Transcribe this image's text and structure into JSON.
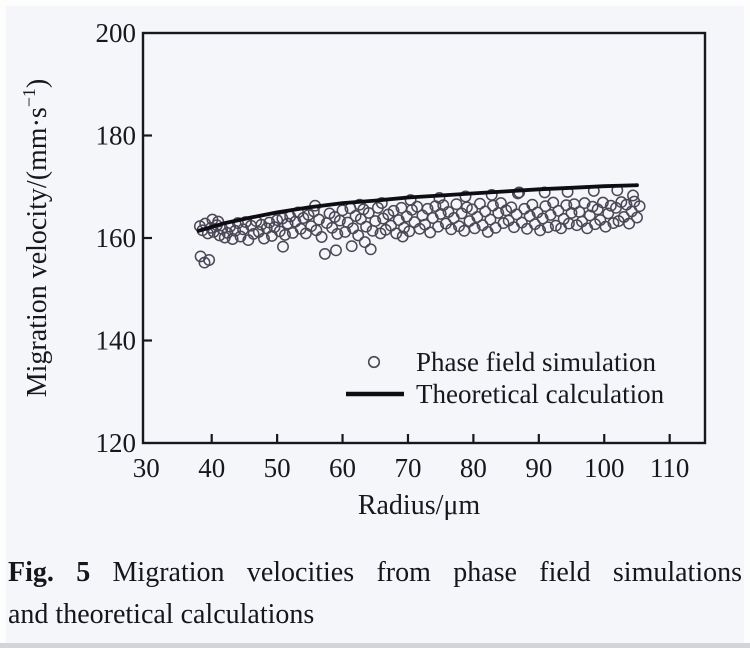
{
  "caption": {
    "prefix": "Fig. 5",
    "line1_rest": "Migration velocities from phase field simulations",
    "line2": "and theoretical calculations"
  },
  "colors": {
    "ink": "#17171f",
    "scatter_stroke": "#4b4756",
    "line_stroke": "#0d0d13",
    "background": "#f5f6f9",
    "frame": "#fdfdfe",
    "bottom_strip": "#d2d4d7"
  },
  "chart_data": {
    "type": "scatter",
    "title": "",
    "xlabel": "Radius/μm",
    "ylabel": "Migration velocity/(mm·s⁻¹)",
    "ylabel_parts": {
      "pre": "Migration velocity/(mm·s",
      "sup": "−1",
      "post": ")"
    },
    "xlim": [
      29.5,
      115.4
    ],
    "ylim": [
      120,
      200
    ],
    "x_ticks": [
      30,
      40,
      50,
      60,
      70,
      80,
      90,
      100,
      110
    ],
    "y_ticks": [
      120,
      140,
      160,
      180,
      200
    ],
    "grid": false,
    "legend_pos": "inside-bottom-center",
    "legend": [
      {
        "label": "Phase field simulation",
        "marker": "circle"
      },
      {
        "label": "Theoretical calculation",
        "marker": "line"
      }
    ],
    "series": [
      {
        "name": "Phase field simulation",
        "type": "scatter",
        "points": [
          [
            38.2,
            162.3
          ],
          [
            38.6,
            161.5
          ],
          [
            39.0,
            162.8
          ],
          [
            39.4,
            160.9
          ],
          [
            39.9,
            162.0
          ],
          [
            40.1,
            163.6
          ],
          [
            40.3,
            161.2
          ],
          [
            40.8,
            162.5
          ],
          [
            41.0,
            163.2
          ],
          [
            41.2,
            160.5
          ],
          [
            41.6,
            161.8
          ],
          [
            42.0,
            160.1
          ],
          [
            38.3,
            156.4
          ],
          [
            38.9,
            155.2
          ],
          [
            39.6,
            155.7
          ],
          [
            42.4,
            161.0
          ],
          [
            42.8,
            162.2
          ],
          [
            43.2,
            159.8
          ],
          [
            43.6,
            161.4
          ],
          [
            44.0,
            162.9
          ],
          [
            44.4,
            160.3
          ],
          [
            44.8,
            161.7
          ],
          [
            45.2,
            163.1
          ],
          [
            45.6,
            159.6
          ],
          [
            46.0,
            162.4
          ],
          [
            46.4,
            160.8
          ],
          [
            46.8,
            163.3
          ],
          [
            47.2,
            161.2
          ],
          [
            47.6,
            162.6
          ],
          [
            48.0,
            159.9
          ],
          [
            48.4,
            161.9
          ],
          [
            48.8,
            163.0
          ],
          [
            49.2,
            160.4
          ],
          [
            49.6,
            162.1
          ],
          [
            50.0,
            163.5
          ],
          [
            50.9,
            158.3
          ],
          [
            50.4,
            161.3
          ],
          [
            50.8,
            163.8
          ],
          [
            51.2,
            160.6
          ],
          [
            51.6,
            162.8
          ],
          [
            52.0,
            164.2
          ],
          [
            52.4,
            161.0
          ],
          [
            52.8,
            163.2
          ],
          [
            53.2,
            165.0
          ],
          [
            53.6,
            161.8
          ],
          [
            54.0,
            163.9
          ],
          [
            54.4,
            160.9
          ],
          [
            54.8,
            164.5
          ],
          [
            55.2,
            162.3
          ],
          [
            55.6,
            165.2
          ],
          [
            55.8,
            166.3
          ],
          [
            56.0,
            161.5
          ],
          [
            56.4,
            163.6
          ],
          [
            56.8,
            160.2
          ],
          [
            57.3,
            156.9
          ],
          [
            57.6,
            162.9
          ],
          [
            58.0,
            164.8
          ],
          [
            58.4,
            162.0
          ],
          [
            58.8,
            164.1
          ],
          [
            59.0,
            157.6
          ],
          [
            59.2,
            160.8
          ],
          [
            59.6,
            163.4
          ],
          [
            60.0,
            165.4
          ],
          [
            60.4,
            161.2
          ],
          [
            60.8,
            163.0
          ],
          [
            61.2,
            165.8
          ],
          [
            61.4,
            158.4
          ],
          [
            61.6,
            161.9
          ],
          [
            62.0,
            164.3
          ],
          [
            62.4,
            160.5
          ],
          [
            62.6,
            166.5
          ],
          [
            62.8,
            163.7
          ],
          [
            63.2,
            165.6
          ],
          [
            63.4,
            159.2
          ],
          [
            63.6,
            162.2
          ],
          [
            64.0,
            164.9
          ],
          [
            64.3,
            157.8
          ],
          [
            64.6,
            161.4
          ],
          [
            65.0,
            163.3
          ],
          [
            65.4,
            165.9
          ],
          [
            65.8,
            160.9
          ],
          [
            66.0,
            166.8
          ],
          [
            66.2,
            163.8
          ],
          [
            66.6,
            161.6
          ],
          [
            67.0,
            164.6
          ],
          [
            67.4,
            162.4
          ],
          [
            67.8,
            165.3
          ],
          [
            68.2,
            160.9
          ],
          [
            68.6,
            163.5
          ],
          [
            69.0,
            165.9
          ],
          [
            69.2,
            160.3
          ],
          [
            69.4,
            162.0
          ],
          [
            69.8,
            164.2
          ],
          [
            70.2,
            161.3
          ],
          [
            70.4,
            167.4
          ],
          [
            70.6,
            165.5
          ],
          [
            71.0,
            163.1
          ],
          [
            71.4,
            166.1
          ],
          [
            71.8,
            161.8
          ],
          [
            72.2,
            164.4
          ],
          [
            72.6,
            162.6
          ],
          [
            73.0,
            165.7
          ],
          [
            73.4,
            161.1
          ],
          [
            73.8,
            163.9
          ],
          [
            74.2,
            166.2
          ],
          [
            74.6,
            162.2
          ],
          [
            74.8,
            167.8
          ],
          [
            75.0,
            164.7
          ],
          [
            75.4,
            166.4
          ],
          [
            75.8,
            162.8
          ],
          [
            76.2,
            165.1
          ],
          [
            76.6,
            161.7
          ],
          [
            77.0,
            163.9
          ],
          [
            77.4,
            166.6
          ],
          [
            77.8,
            162.3
          ],
          [
            78.2,
            164.8
          ],
          [
            78.6,
            161.4
          ],
          [
            78.8,
            168.1
          ],
          [
            79.0,
            166.0
          ],
          [
            79.4,
            163.3
          ],
          [
            79.8,
            165.6
          ],
          [
            80.2,
            161.9
          ],
          [
            80.6,
            164.1
          ],
          [
            81.0,
            166.7
          ],
          [
            81.4,
            162.5
          ],
          [
            81.8,
            165.2
          ],
          [
            82.2,
            161.2
          ],
          [
            82.6,
            163.6
          ],
          [
            82.8,
            168.4
          ],
          [
            83.0,
            166.3
          ],
          [
            83.4,
            162.0
          ],
          [
            83.8,
            164.9
          ],
          [
            84.2,
            166.8
          ],
          [
            84.6,
            162.9
          ],
          [
            85.0,
            165.4
          ],
          [
            85.4,
            163.4
          ],
          [
            85.8,
            166.0
          ],
          [
            86.2,
            162.1
          ],
          [
            86.6,
            164.6
          ],
          [
            86.8,
            168.7
          ],
          [
            87.0,
            168.9
          ],
          [
            87.4,
            163.0
          ],
          [
            87.8,
            165.7
          ],
          [
            88.2,
            161.8
          ],
          [
            88.6,
            164.3
          ],
          [
            89.0,
            166.5
          ],
          [
            89.4,
            162.7
          ],
          [
            89.8,
            165.0
          ],
          [
            90.2,
            161.5
          ],
          [
            90.6,
            163.8
          ],
          [
            90.9,
            168.9
          ],
          [
            91.0,
            166.2
          ],
          [
            91.4,
            162.1
          ],
          [
            91.8,
            164.5
          ],
          [
            92.2,
            166.9
          ],
          [
            92.6,
            162.4
          ],
          [
            93.0,
            165.3
          ],
          [
            93.4,
            161.9
          ],
          [
            93.8,
            163.7
          ],
          [
            94.2,
            166.4
          ],
          [
            94.4,
            169.0
          ],
          [
            94.6,
            162.8
          ],
          [
            95.0,
            164.9
          ],
          [
            95.4,
            166.6
          ],
          [
            95.8,
            162.5
          ],
          [
            96.2,
            165.1
          ],
          [
            96.6,
            163.2
          ],
          [
            97.0,
            166.8
          ],
          [
            97.4,
            161.9
          ],
          [
            97.8,
            164.4
          ],
          [
            98.2,
            166.1
          ],
          [
            98.4,
            169.2
          ],
          [
            98.6,
            162.7
          ],
          [
            99.0,
            165.6
          ],
          [
            99.4,
            163.5
          ],
          [
            99.8,
            166.9
          ],
          [
            100.2,
            162.2
          ],
          [
            100.6,
            164.8
          ],
          [
            101.0,
            166.3
          ],
          [
            101.4,
            162.9
          ],
          [
            101.8,
            165.9
          ],
          [
            102.0,
            169.3
          ],
          [
            102.2,
            163.3
          ],
          [
            102.6,
            167.0
          ],
          [
            103.0,
            164.1
          ],
          [
            103.4,
            166.5
          ],
          [
            103.8,
            162.8
          ],
          [
            104.2,
            165.2
          ],
          [
            104.4,
            168.3
          ],
          [
            104.6,
            167.1
          ],
          [
            105.0,
            164.0
          ],
          [
            105.4,
            166.2
          ]
        ]
      },
      {
        "name": "Theoretical calculation",
        "type": "line",
        "points": [
          [
            38,
            161.4
          ],
          [
            42,
            162.9
          ],
          [
            46,
            164.0
          ],
          [
            50,
            165.0
          ],
          [
            55,
            166.0
          ],
          [
            60,
            166.8
          ],
          [
            65,
            167.3
          ],
          [
            70,
            167.9
          ],
          [
            75,
            168.3
          ],
          [
            80,
            168.7
          ],
          [
            85,
            169.1
          ],
          [
            90,
            169.5
          ],
          [
            95,
            169.8
          ],
          [
            100,
            170.1
          ],
          [
            105,
            170.3
          ]
        ]
      }
    ]
  }
}
